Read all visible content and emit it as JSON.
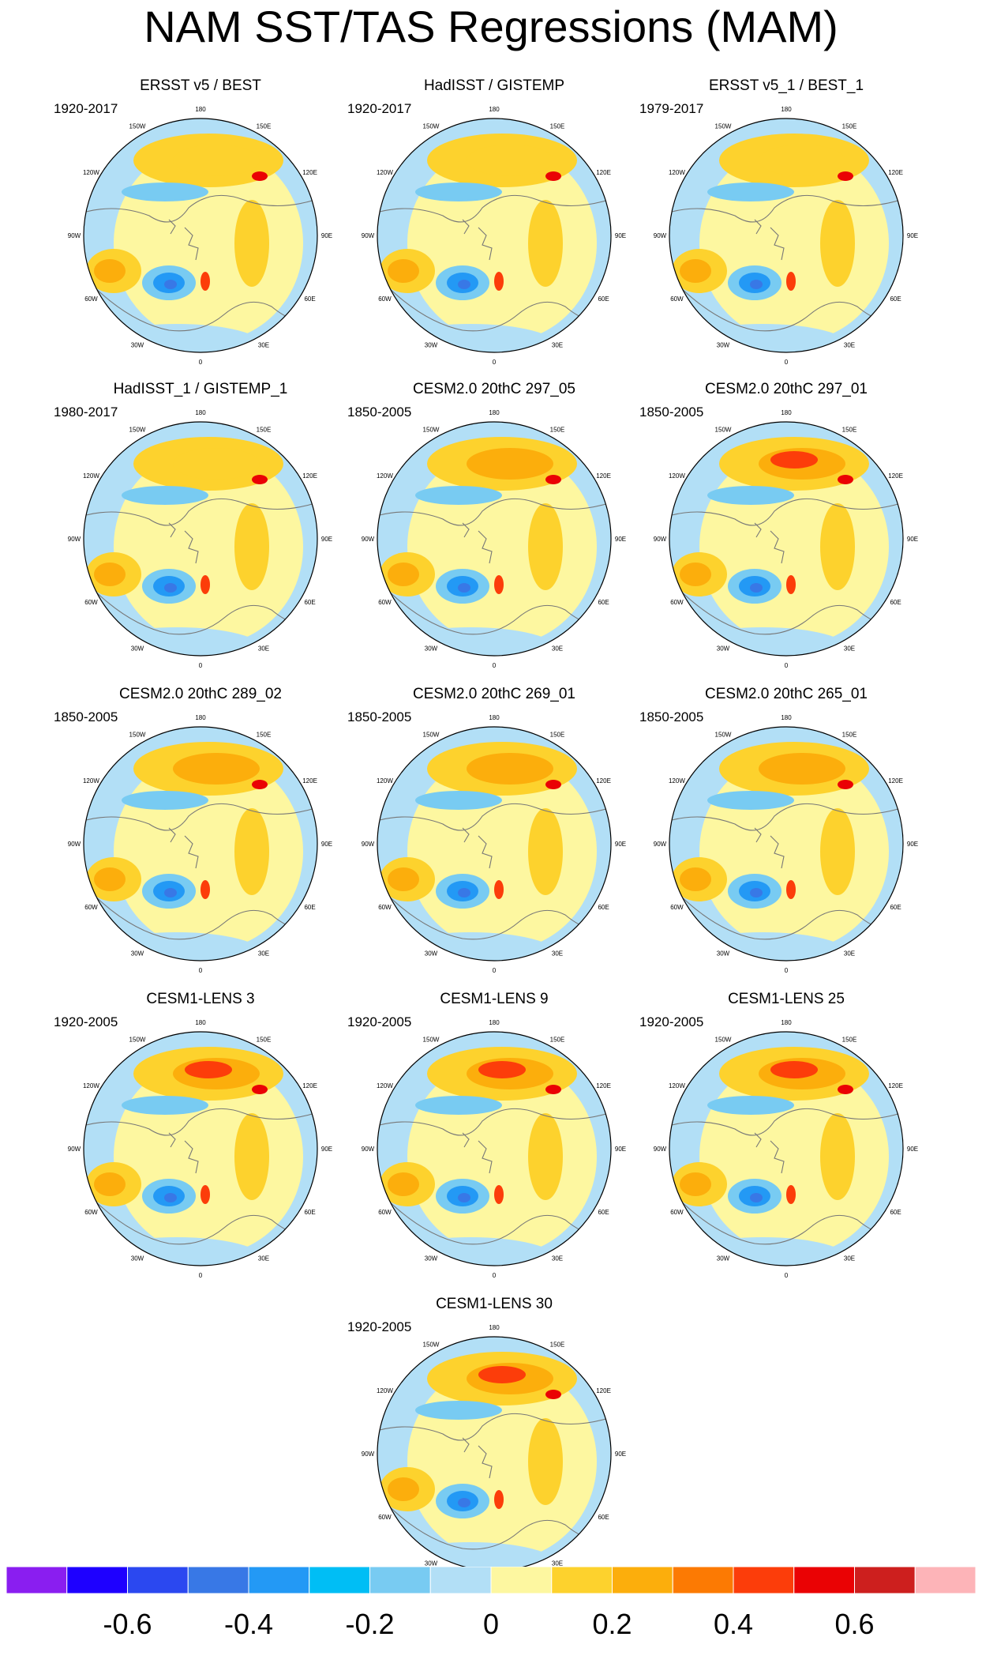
{
  "title": "NAM SST/TAS Regressions (MAM)",
  "panels": [
    {
      "title": "ERSST v5 / BEST",
      "period": "1920-2017"
    },
    {
      "title": "HadISST / GISTEMP",
      "period": "1920-2017"
    },
    {
      "title": "ERSST v5_1 / BEST_1",
      "period": "1979-2017"
    },
    {
      "title": "HadISST_1 / GISTEMP_1",
      "period": "1980-2017"
    },
    {
      "title": "CESM2.0 20thC 297_05",
      "period": "1850-2005"
    },
    {
      "title": "CESM2.0 20thC 297_01",
      "period": "1850-2005"
    },
    {
      "title": "CESM2.0 20thC 289_02",
      "period": "1850-2005"
    },
    {
      "title": "CESM2.0 20thC 269_01",
      "period": "1850-2005"
    },
    {
      "title": "CESM2.0 20thC 265_01",
      "period": "1850-2005"
    },
    {
      "title": "CESM1-LENS 3",
      "period": "1920-2005"
    },
    {
      "title": "CESM1-LENS 9",
      "period": "1920-2005"
    },
    {
      "title": "CESM1-LENS 25",
      "period": "1920-2005"
    },
    {
      "title": "CESM1-LENS 30",
      "period": "1920-2005"
    }
  ],
  "longitude_labels": [
    "180",
    "150E",
    "120E",
    "90E",
    "60E",
    "30E",
    "0",
    "30W",
    "60W",
    "90W",
    "120W",
    "150W"
  ],
  "colorbar": {
    "colors": [
      "#8a1ef0",
      "#1e00ff",
      "#2b48f0",
      "#3878e6",
      "#2399f5",
      "#00bef5",
      "#78cbf2",
      "#b2dff6",
      "#fdf7a0",
      "#fdd22d",
      "#fcae0c",
      "#fc7a03",
      "#fc3d0a",
      "#ea0204",
      "#cd1f1e",
      "#fdb4b8"
    ],
    "labels": [
      "-0.6",
      "-0.4",
      "-0.2",
      "0",
      "0.2",
      "0.4",
      "0.6"
    ]
  }
}
